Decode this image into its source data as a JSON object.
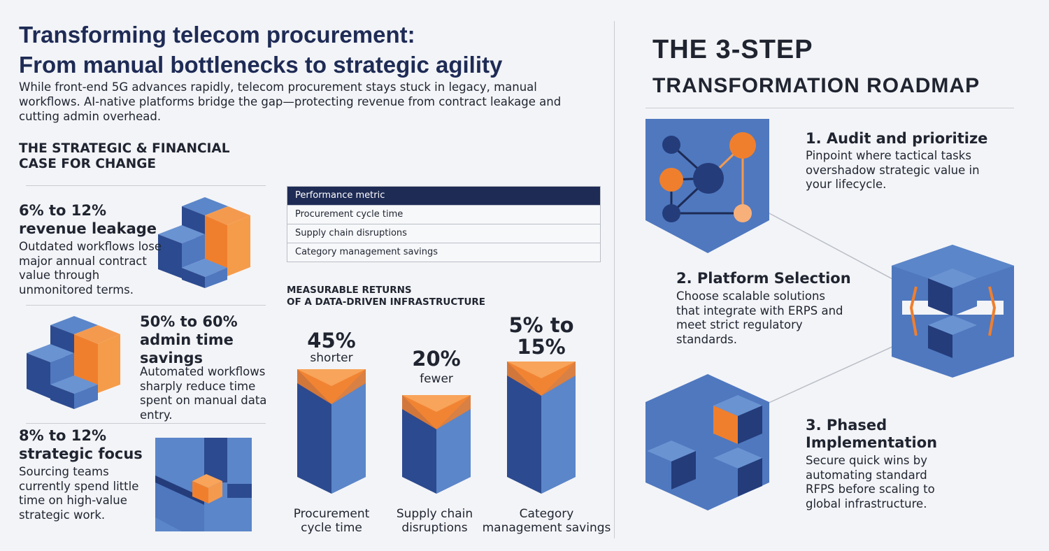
{
  "header": {
    "title_lines": [
      "Transforming telecom procurement:",
      "From manual bottlenecks to strategic agility"
    ],
    "subtitle": "While front-end 5G advances rapidly, telecom procurement stays stuck in legacy, manual workflows. AI-native platforms bridge the gap—protecting revenue from contract leakage and cutting admin overhead."
  },
  "case_section": {
    "title_lines": [
      "THE STRATEGIC & FINANCIAL",
      "CASE FOR CHANGE"
    ],
    "stats": [
      {
        "headline": "6% to 12% revenue leakage",
        "body": "Outdated workflows lose major annual contract value through unmonitored terms."
      },
      {
        "headline": "50% to 60% admin time savings",
        "body": "Automated workflows sharply reduce time spent on manual data entry."
      },
      {
        "headline": "8% to 12% strategic focus",
        "body": "Sourcing teams currently spend little time on high-value strategic work."
      }
    ]
  },
  "table": {
    "header": "Performance metric",
    "rows": [
      "Procurement cycle time",
      "Supply chain disruptions",
      "Category management savings"
    ]
  },
  "returns": {
    "title_lines": [
      "MEASURABLE RETURNS",
      "OF A DATA-DRIVEN INFRASTRUCTURE"
    ],
    "items": [
      {
        "value": "45%",
        "unit": "shorter",
        "label": "Procurement cycle time"
      },
      {
        "value": "20%",
        "unit": "fewer",
        "label": "Supply chain disruptions"
      },
      {
        "value": "5% to 15%",
        "label": "Category management savings"
      }
    ]
  },
  "roadmap": {
    "title_lines": [
      "THE 3-STEP",
      "TRANSFORMATION ROADMAP"
    ],
    "steps": [
      {
        "title": "1. Audit and prioritize",
        "body": "Pinpoint where tactical tasks overshadow strategic value in your lifecycle."
      },
      {
        "title": "2. Platform Selection",
        "body": "Choose scalable solutions that integrate with ERPS and meet strict regulatory standards."
      },
      {
        "title": "3. Phased Implementation",
        "body": "Secure quick wins by automating standard RFPS before scaling to global infrastructure."
      }
    ]
  }
}
